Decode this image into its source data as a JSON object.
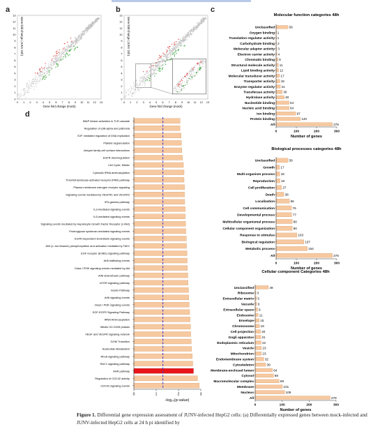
{
  "panels": {
    "a": {
      "label": "a",
      "ylabel": "Gene fold change (JUNV 24h)",
      "xlabel": "Gene fold change (mock)",
      "ticks": [
        "0",
        "1",
        "2",
        "3",
        "4",
        "5",
        "6",
        "7",
        "8",
        "9",
        "10",
        "11",
        "12",
        "13"
      ]
    },
    "b": {
      "label": "b",
      "ylabel": "Gene fold change (JUNV 24h)",
      "xlabel": "Gene fold change (mock)",
      "ticks": [
        "0",
        "1",
        "2",
        "3",
        "4",
        "5",
        "6",
        "7",
        "8",
        "9",
        "10",
        "11",
        "12",
        "13"
      ]
    },
    "c": {
      "label": "c"
    },
    "d": {
      "label": "d"
    }
  },
  "chart_data": [
    {
      "type": "bar",
      "panel": "c",
      "title": "Molecular function categories 48h",
      "xlabel": "Number of genes",
      "xlim": [
        0,
        300
      ],
      "xticks": [
        "0",
        "100",
        "200",
        "300"
      ],
      "categories": [
        "Unclassified",
        "Oxygen binding",
        "Translation regulator activity",
        "Carbohydrate binding",
        "Molecular adaptor activity",
        "Electron carrier activity",
        "Chromatin binding",
        "Structural molecule activity",
        "Lipid binding activity",
        "Molecular transducer activity",
        "Transporter activity",
        "Enzyme regulator activity",
        "Transferase activity",
        "Hydrolase activity",
        "Nucleotide binding",
        "Nucleic acid binding",
        "Ion binding",
        "Protein binding",
        "All"
      ],
      "values": [
        59,
        1,
        1,
        2,
        3,
        4,
        9,
        11,
        12,
        17,
        18,
        21,
        30,
        40,
        64,
        64,
        97,
        120,
        278
      ]
    },
    {
      "type": "bar",
      "panel": "c",
      "title": "Biological processes categories 48h",
      "xlabel": "Number of genes",
      "xlim": [
        0,
        300
      ],
      "xticks": [
        "0",
        "100",
        "200",
        "300"
      ],
      "categories": [
        "Unclassified",
        "Growth",
        "Multi-organism process",
        "Reproduction",
        "Cell proliferation",
        "Death",
        "Localization",
        "Cell communication",
        "Developmental process",
        "Multicellular organismal process",
        "Cellular component organization",
        "Response to stimulus",
        "Biological regulation",
        "Metabolic process",
        "All"
      ],
      "values": [
        59,
        17,
        18,
        19,
        27,
        38,
        66,
        76,
        77,
        80,
        80,
        103,
        137,
        154,
        278
      ]
    },
    {
      "type": "bar",
      "panel": "c",
      "title": "Cellular component Categories 48h",
      "xlabel": "Number of genes",
      "xlim": [
        0,
        300
      ],
      "xticks": [
        "0",
        "100",
        "200",
        "300"
      ],
      "categories": [
        "Unclassified",
        "Ribosome",
        "Extracellular matrix",
        "Vacuole",
        "Extracellular space",
        "Endosome",
        "Envelope",
        "Chromosome",
        "Cell projection",
        "Gogli apparatus",
        "Endoplasmic reticulum",
        "Vesicle",
        "Mitochondrion",
        "Endomembrane system",
        "Cytoskeleton",
        "Membrane-enclosed lumen",
        "Cytosol",
        "Macromolecular complex",
        "Membrane",
        "Nucleus",
        "All"
      ],
      "values": [
        49,
        3,
        5,
        6,
        9,
        11,
        15,
        16,
        20,
        21,
        22,
        23,
        23,
        32,
        39,
        64,
        68,
        89,
        101,
        109,
        278
      ]
    },
    {
      "type": "bar",
      "panel": "d",
      "xlabel": "-log₁₀(p-value)",
      "xlim": [
        0,
        3
      ],
      "xticks": [
        "0",
        "1",
        "2",
        "3"
      ],
      "threshold": 1.3,
      "highlight": "AHR pathway",
      "highlight_color": "#e8141a",
      "bar_color": "#f7c9a0",
      "categories": [
        "IMAP kinase activation in TLR cascade",
        "Regulation of p38-alpha and p38-beta",
        "E2F mediated regulation of DNA replication",
        "Platelet degranulation",
        "Integrin family cell surface interactions",
        "EGFR downregulation",
        "Cell Cycle, Mitotic",
        "Cytosolic tRNA aminoacylation",
        "Thrombin/protease-activated receptor (PAR) pathway",
        "Plasma membrane estrogen receptor signaling",
        "Signaling events mediated by VEGFR1 and VEGFR2",
        "IFN-gamma pathway",
        "IL3-mediated signaling events",
        "IL5-mediated signaling events",
        "Signaling events mediated by Hepatocyte Growth Factor Receptor (c-Met)",
        "Proteoglycan syndecan-mediated signaling events",
        "EGFR-dependent Endothelin signaling events",
        "JNK (c-Jun kinases) phosphorylation and activation mediated by TAK1",
        "EGF receptor (ErbB1) signaling pathway",
        "Arf6 trafficking events",
        "Class I PI3K signaling events mediated by Akt",
        "Arf6 downstream pathway",
        "mTOR signaling pathway",
        "Insulin Pathway",
        "Arf6 signaling events",
        "Class I PI3K signaling events",
        "EGF-EGFR Signaling Pathway",
        "tRNA Aminoacylation",
        "Mitotic G2-G2/M phases",
        "VEGF and VEGFR signaling network",
        "G2/M Transition",
        "Nucleotide Metabolism",
        "RhoA signaling pathway",
        "RAC1 signaling pathway",
        "AHR pathway",
        "Regulation of CDC42 activity",
        "CDC42 signaling events"
      ],
      "values": [
        2.07,
        2.07,
        2.12,
        2.13,
        2.15,
        2.18,
        2.22,
        2.25,
        2.25,
        2.27,
        2.27,
        2.28,
        2.3,
        2.3,
        2.32,
        2.33,
        2.35,
        2.36,
        2.38,
        2.39,
        2.4,
        2.42,
        2.43,
        2.45,
        2.46,
        2.48,
        2.5,
        2.52,
        2.54,
        2.55,
        2.57,
        2.59,
        2.62,
        2.64,
        2.67,
        2.85,
        2.93
      ]
    }
  ],
  "caption": {
    "label": "Figure 1.",
    "text": " Differential gene expression assessment of JUNV-infected HepG2 cells: (a) Differentially expressed genes between mock-infected and JUNV-infected HepG2 cells at 24 h pi identified by"
  }
}
